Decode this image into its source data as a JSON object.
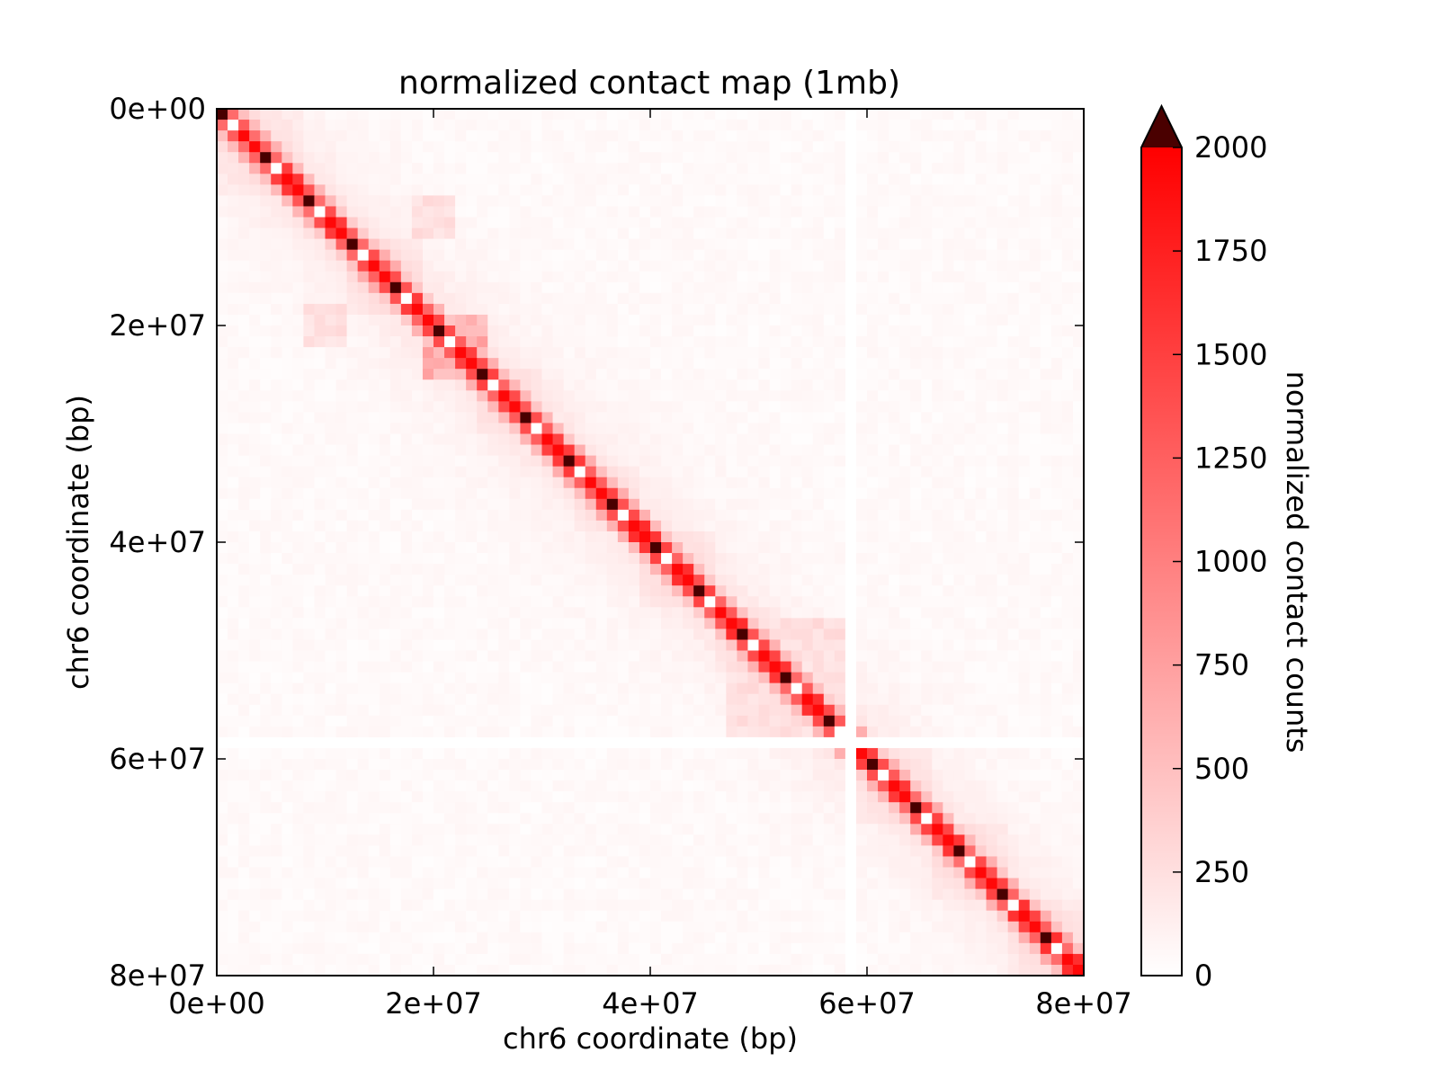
{
  "chart_data": {
    "type": "heatmap",
    "title": "normalized contact map (1mb)",
    "xlabel": "chr6 coordinate (bp)",
    "ylabel": "chr6 coordinate (bp)",
    "xlim": [
      0,
      80000000
    ],
    "ylim": [
      80000000,
      0
    ],
    "bin_size": 1000000,
    "n_bins": 80,
    "x_ticks": [
      0,
      20000000,
      40000000,
      60000000,
      80000000
    ],
    "x_tick_labels": [
      "0e+00",
      "2e+07",
      "4e+07",
      "6e+07",
      "8e+07"
    ],
    "y_ticks": [
      0,
      20000000,
      40000000,
      60000000,
      80000000
    ],
    "y_tick_labels": [
      "0e+00",
      "2e+07",
      "4e+07",
      "6e+07",
      "8e+07"
    ],
    "colorbar": {
      "label": "normalized contact counts",
      "range": [
        0,
        2000
      ],
      "extend": "max",
      "ticks": [
        0,
        250,
        500,
        750,
        1000,
        1250,
        1500,
        1750,
        2000
      ],
      "tick_labels": [
        "0",
        "250",
        "500",
        "750",
        "1000",
        "1250",
        "1500",
        "1750",
        "2000"
      ],
      "cmap_low": "#ffffff",
      "cmap_high": "#ff0000",
      "over_color": "#4a0000"
    },
    "pattern": {
      "diagonal_state_cycle": [
        "over",
        "zero",
        "near-max",
        "near-max"
      ],
      "first_offdiagonal": 1500,
      "second_offdiagonal": 550,
      "background": 40,
      "empty_bins": [
        58
      ],
      "tad_boundaries": [
        0,
        8,
        12,
        19,
        24,
        30,
        33,
        39,
        46,
        52,
        57,
        59,
        66,
        73,
        80
      ],
      "enriched_regions": [
        {
          "x_range": [
            19,
            24
          ],
          "y_range": [
            19,
            24
          ],
          "value": 600
        },
        {
          "x_range": [
            8,
            11
          ],
          "y_range": [
            18,
            21
          ],
          "value": 250
        },
        {
          "x_range": [
            47,
            55
          ],
          "y_range": [
            49,
            57
          ],
          "value": 250
        }
      ]
    }
  }
}
